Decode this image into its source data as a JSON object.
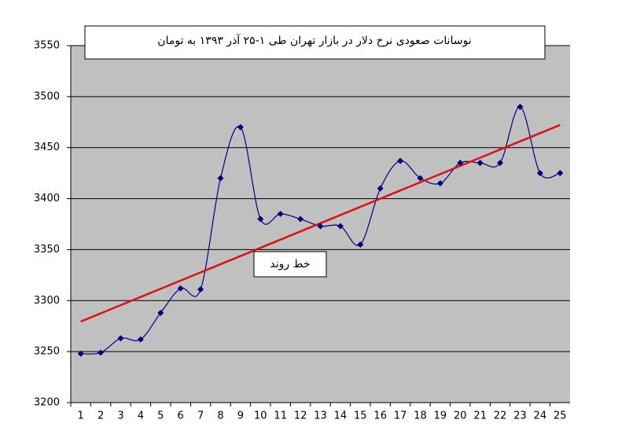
{
  "chart_data": {
    "type": "line",
    "title": "نوسانات صعودی نرخ دلار در بازار تهران طی ۱-۲۵ آذر ۱۳۹۳ به تومان",
    "annotation": "خط روند",
    "categories": [
      "1",
      "2",
      "3",
      "4",
      "5",
      "6",
      "7",
      "8",
      "9",
      "10",
      "11",
      "12",
      "13",
      "14",
      "15",
      "16",
      "17",
      "18",
      "19",
      "20",
      "21",
      "22",
      "23",
      "24",
      "25"
    ],
    "series": [
      {
        "color": "#000080",
        "values": [
          3248,
          3249,
          3263,
          3262,
          3288,
          3312,
          3311,
          3420,
          3470,
          3380,
          3385,
          3380,
          3373,
          3373,
          3355,
          3410,
          3437,
          3420,
          3415,
          3435,
          3435,
          3435,
          3490,
          3425,
          3425
        ]
      }
    ],
    "trendline_color": "#e01010",
    "ylim": [
      3200,
      3550
    ],
    "yticks": [
      3200,
      3250,
      3300,
      3350,
      3400,
      3450,
      3500,
      3550
    ],
    "grid": true
  }
}
